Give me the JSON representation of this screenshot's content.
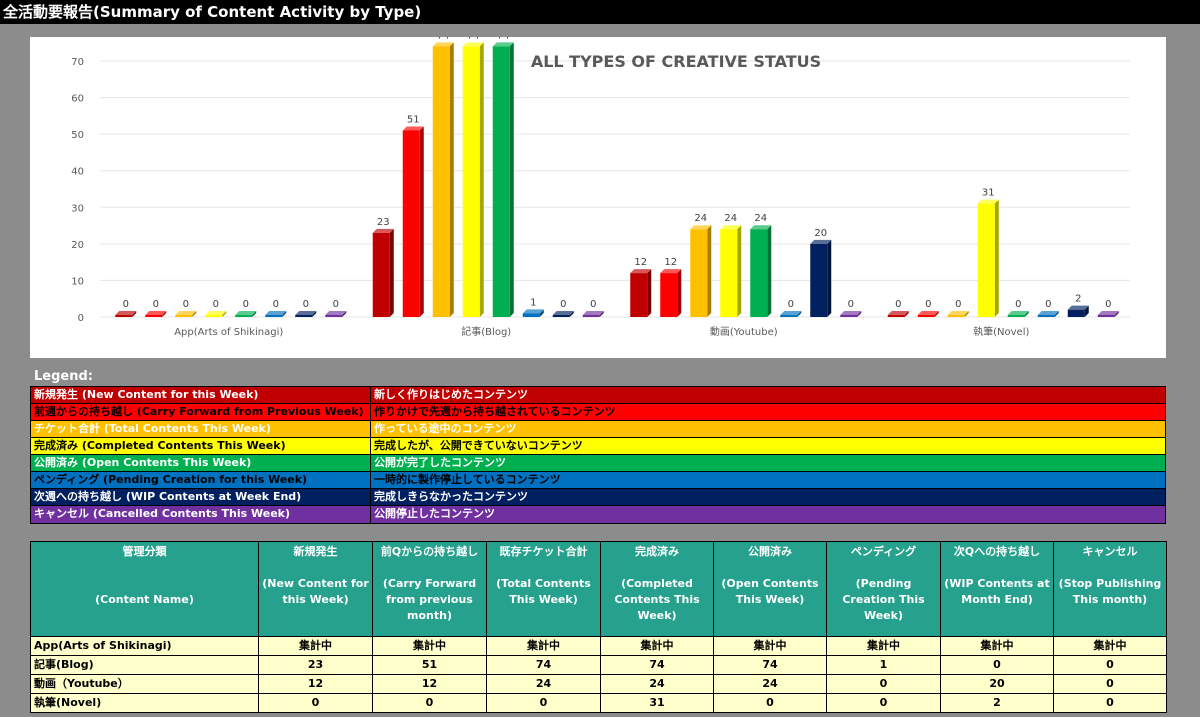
{
  "window_title": "全活動要報告(Summary of Content Activity by Type)",
  "colors": {
    "series": [
      "#c00000",
      "#ff0000",
      "#ffc000",
      "#ffff00",
      "#00b050",
      "#0070c0",
      "#002060",
      "#7030a0"
    ]
  },
  "chart_data": {
    "type": "bar",
    "title": "ALL TYPES OF CREATIVE STATUS",
    "xlabel": "",
    "ylabel": "",
    "ylim": [
      0,
      70
    ],
    "yticks": [
      0,
      10,
      20,
      30,
      40,
      50,
      60,
      70
    ],
    "grid": true,
    "legend": "none",
    "style": "3d-columns",
    "categories": [
      "App(Arts of Shikinagi)",
      "記事(Blog)",
      "動画(Youtube)",
      "執筆(Novel)"
    ],
    "series": [
      {
        "values": [
          0,
          23,
          12,
          0
        ],
        "color": "#c00000"
      },
      {
        "values": [
          0,
          51,
          12,
          0
        ],
        "color": "#ff0000"
      },
      {
        "values": [
          0,
          74,
          24,
          0
        ],
        "color": "#ffc000"
      },
      {
        "values": [
          0,
          74,
          24,
          31
        ],
        "color": "#ffff00"
      },
      {
        "values": [
          0,
          74,
          24,
          0
        ],
        "color": "#00b050"
      },
      {
        "values": [
          0,
          1,
          0,
          0
        ],
        "color": "#0070c0"
      },
      {
        "values": [
          0,
          0,
          20,
          2
        ],
        "color": "#002060"
      },
      {
        "values": [
          0,
          0,
          0,
          0
        ],
        "color": "#7030a0"
      }
    ]
  },
  "legend": {
    "heading": "Legend:",
    "items": [
      {
        "key": "新規発生 (New Content for this Week)",
        "desc": "新しく作りはじめたコンテンツ",
        "bg": "#c00000",
        "fg": "#ffffff"
      },
      {
        "key": "前週からの持ち越し (Carry Forward from Previous Week)",
        "desc": "作りかけで先週から持ち越されているコンテンツ",
        "bg": "#ff0000",
        "fg": "#000000"
      },
      {
        "key": "チケット合計 (Total Contents This Week)",
        "desc": "作っている途中のコンテンツ",
        "bg": "#ffc000",
        "fg": "#ffffff"
      },
      {
        "key": "完成済み (Completed Contents This Week)",
        "desc": "完成したが、公開できていないコンテンツ",
        "bg": "#ffff00",
        "fg": "#000000"
      },
      {
        "key": "公開済み (Open Contents This Week)",
        "desc": "公開が完了したコンテンツ",
        "bg": "#00b050",
        "fg": "#ffffff"
      },
      {
        "key": "ペンディング (Pending Creation for this Week)",
        "desc": "一時的に製作停止しているコンテンツ",
        "bg": "#0070c0",
        "fg": "#000000"
      },
      {
        "key": "次週への持ち越し (WIP Contents at Week End)",
        "desc": "完成しきらなかったコンテンツ",
        "bg": "#002060",
        "fg": "#ffffff"
      },
      {
        "key": "キャンセル (Cancelled Contents This Week)",
        "desc": "公開停止したコンテンツ",
        "bg": "#7030a0",
        "fg": "#ffffff"
      }
    ]
  },
  "table": {
    "headers": [
      {
        "jp": "管理分類",
        "en": "(Content Name)"
      },
      {
        "jp": "新規発生",
        "en": "(New Content for this Week)"
      },
      {
        "jp": "前Qからの持ち越し",
        "en": "(Carry Forward from previous month)"
      },
      {
        "jp": "既存チケット合計",
        "en": "(Total Contents This Week)"
      },
      {
        "jp": "完成済み",
        "en": "(Completed Contents This Week)"
      },
      {
        "jp": "公開済み",
        "en": "(Open Contents This Week)"
      },
      {
        "jp": "ペンディング",
        "en": "(Pending Creation This Week)"
      },
      {
        "jp": "次Qへの持ち越し",
        "en": "(WIP Contents at Month End)"
      },
      {
        "jp": "キャンセル",
        "en": "(Stop Publishing This month)"
      }
    ],
    "rows": [
      {
        "label": "App(Arts of Shikinagi)",
        "cells": [
          "集計中",
          "集計中",
          "集計中",
          "集計中",
          "集計中",
          "集計中",
          "集計中",
          "集計中"
        ]
      },
      {
        "label": "記事(Blog)",
        "cells": [
          "23",
          "51",
          "74",
          "74",
          "74",
          "1",
          "0",
          "0"
        ]
      },
      {
        "label": "動画（Youtube）",
        "cells": [
          "12",
          "12",
          "24",
          "24",
          "24",
          "0",
          "20",
          "0"
        ]
      },
      {
        "label": "執筆(Novel)",
        "cells": [
          "0",
          "0",
          "0",
          "31",
          "0",
          "0",
          "2",
          "0"
        ]
      }
    ]
  }
}
